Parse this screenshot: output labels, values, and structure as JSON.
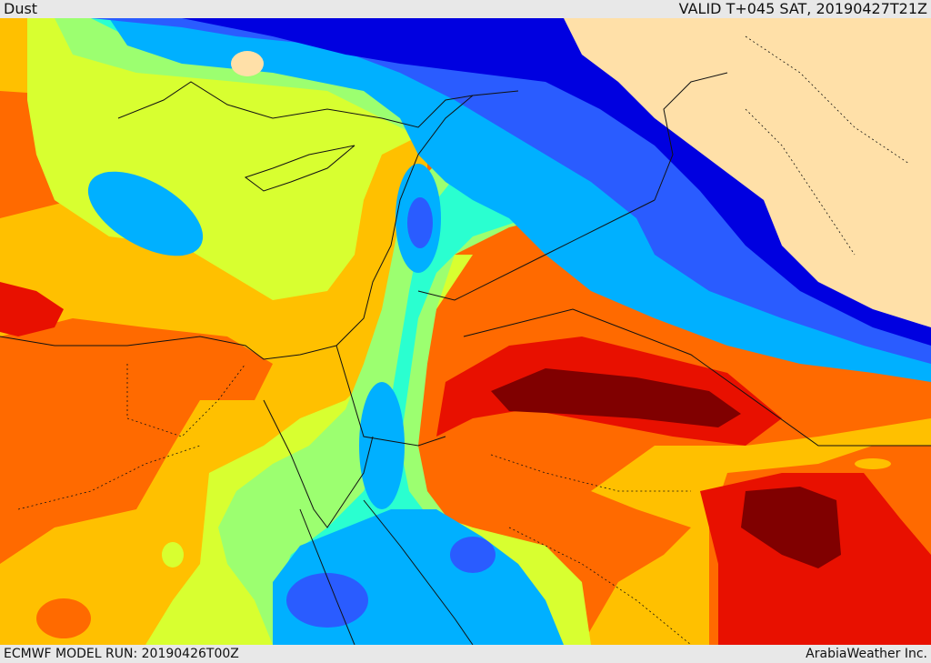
{
  "header": {
    "title": "Dust",
    "valid": "VALID T+045 SAT, 20190427T21Z"
  },
  "footer": {
    "model_run": "ECMWF MODEL RUN: 20190426T00Z",
    "credit": "ArabiaWeather Inc."
  },
  "map": {
    "field": "dust",
    "land_no_data_color": "#ffe0a8",
    "palette": [
      "#0000e0",
      "#2a5cff",
      "#00b0ff",
      "#2affd0",
      "#9cff70",
      "#d8ff30",
      "#ffc000",
      "#ff6a00",
      "#e81000",
      "#800000"
    ]
  }
}
